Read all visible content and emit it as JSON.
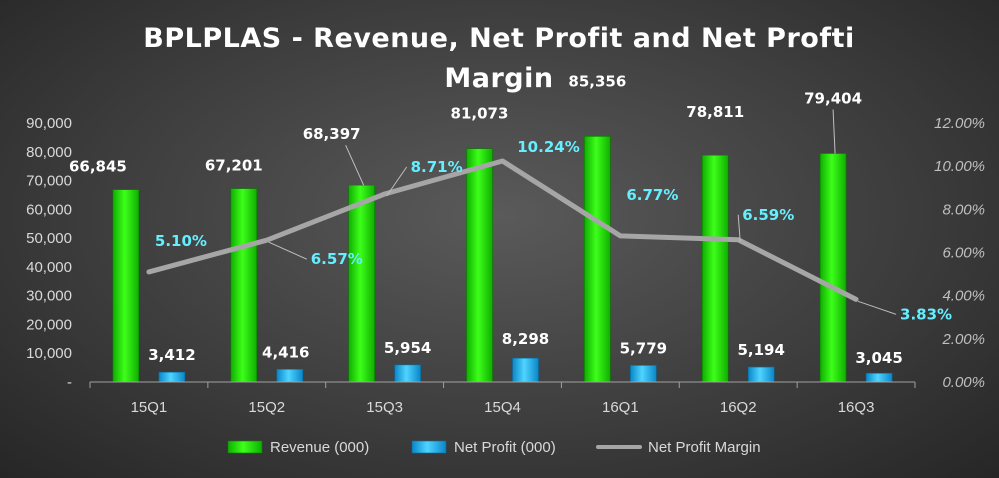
{
  "chart_data": {
    "type": "bar",
    "title_lines": [
      "BPLPLAS - Revenue, Net Profit and Net Profti",
      "Margin"
    ],
    "categories": [
      "15Q1",
      "15Q2",
      "15Q3",
      "15Q4",
      "16Q1",
      "16Q2",
      "16Q3"
    ],
    "series": [
      {
        "name": "Revenue (000)",
        "kind": "bar",
        "axis": "left",
        "color": "#22ee00",
        "values": [
          66845,
          67201,
          68397,
          81073,
          85356,
          78811,
          79404
        ],
        "labels": [
          "66,845",
          "67,201",
          "68,397",
          "81,073",
          "85,356",
          "78,811",
          "79,404"
        ]
      },
      {
        "name": "Net Profit (000)",
        "kind": "bar",
        "axis": "left",
        "color": "#22b4ee",
        "values": [
          3412,
          4416,
          5954,
          8298,
          5779,
          5194,
          3045
        ],
        "labels": [
          "3,412",
          "4,416",
          "5,954",
          "8,298",
          "5,779",
          "5,194",
          "3,045"
        ]
      },
      {
        "name": "Net Profit Margin",
        "kind": "line",
        "axis": "right",
        "color": "#a6a6a6",
        "values": [
          5.1,
          6.57,
          8.71,
          10.24,
          6.77,
          6.59,
          3.83
        ],
        "labels": [
          "5.10%",
          "6.57%",
          "8.71%",
          "10.24%",
          "6.77%",
          "6.59%",
          "3.83%"
        ]
      }
    ],
    "left_axis": {
      "ylim": [
        0,
        90000
      ],
      "ticks": [
        0,
        10000,
        20000,
        30000,
        40000,
        50000,
        60000,
        70000,
        80000,
        90000
      ],
      "tick_labels": [
        "-",
        "10,000",
        "20,000",
        "30,000",
        "40,000",
        "50,000",
        "60,000",
        "70,000",
        "80,000",
        "90,000"
      ]
    },
    "right_axis": {
      "ylim": [
        0,
        12
      ],
      "ticks": [
        0,
        2,
        4,
        6,
        8,
        10,
        12
      ],
      "tick_labels": [
        "0.00%",
        "2.00%",
        "4.00%",
        "6.00%",
        "8.00%",
        "10.00%",
        "12.00%"
      ]
    },
    "legend_position": "bottom",
    "grid": false
  }
}
